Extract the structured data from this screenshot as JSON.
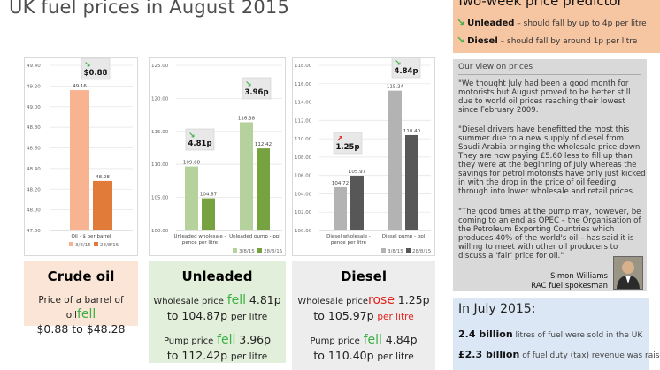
{
  "page": {
    "title": "UK fuel prices in August 2015"
  },
  "chart_data": [
    {
      "type": "bar",
      "categories": [
        "Oil - $ per barrel"
      ],
      "series": [
        {
          "name": "3/8/15",
          "values": [
            49.16
          ],
          "color": "#f8b391"
        },
        {
          "name": "28/8/15",
          "values": [
            48.28
          ],
          "color": "#e07b39"
        }
      ],
      "ylim": [
        47.8,
        49.4
      ],
      "yticks": [
        "47.80",
        "48.00",
        "48.20",
        "48.40",
        "48.60",
        "48.80",
        "49.00",
        "49.20",
        "49.40"
      ],
      "value_labels": [
        "49.16",
        "48.28"
      ],
      "badge": {
        "text": "$0.88",
        "arrow": "down"
      },
      "grid": true,
      "legend": "bottom"
    },
    {
      "type": "bar",
      "categories": [
        "Unleaded wholesale - pence per litre",
        "Unleaded pump - ppl"
      ],
      "series": [
        {
          "name": "3/8/15",
          "values": [
            109.68,
            116.38
          ],
          "color": "#b5d19c"
        },
        {
          "name": "28/8/15",
          "values": [
            104.87,
            112.42
          ],
          "color": "#77a240"
        }
      ],
      "ylim": [
        100,
        125
      ],
      "yticks": [
        "100.00",
        "105.00",
        "110.00",
        "115.00",
        "120.00",
        "125.00"
      ],
      "value_labels": [
        [
          "109.68",
          "104.87"
        ],
        [
          "116.38",
          "112.42"
        ]
      ],
      "badges": [
        {
          "text": "4.81p",
          "arrow": "down"
        },
        {
          "text": "3.96p",
          "arrow": "down"
        }
      ],
      "grid": true,
      "legend": "bottom-right"
    },
    {
      "type": "bar",
      "categories": [
        "Diesel wholesale - pence per litre",
        "Diesel pump - ppl"
      ],
      "series": [
        {
          "name": "3/8/15",
          "values": [
            104.72,
            115.24
          ],
          "color": "#b3b3b3"
        },
        {
          "name": "28/8/15",
          "values": [
            105.97,
            110.4
          ],
          "color": "#575757"
        }
      ],
      "ylim": [
        100,
        118
      ],
      "yticks": [
        "100.00",
        "102.00",
        "104.00",
        "106.00",
        "108.00",
        "110.00",
        "112.00",
        "114.00",
        "116.00",
        "118.00"
      ],
      "value_labels": [
        [
          "104.72",
          "105.97"
        ],
        [
          "115.24",
          "110.40"
        ]
      ],
      "badges": [
        {
          "text": "1.25p",
          "arrow": "up"
        },
        {
          "text": "4.84p",
          "arrow": "down"
        }
      ],
      "grid": true,
      "legend": "bottom-right"
    }
  ],
  "panels": {
    "crude": {
      "heading": "Crude oil",
      "line1_pre": "Price of a barrel of oil",
      "line1_verb": "fell",
      "line2": "$0.88 to $48.28",
      "bg": "#fbe5d6"
    },
    "unleaded": {
      "heading": "Unleaded",
      "ws_pre": "Wholesale price",
      "ws_verb": "fell",
      "ws_amount": "4.81p",
      "ws_to": "to 104.87p",
      "ws_unit": "per litre",
      "pump_pre": "Pump price",
      "pump_verb": "fell",
      "pump_amount": "3.96p",
      "pump_to": "to 112.42p",
      "pump_unit": "per litre",
      "bg": "#e2efda"
    },
    "diesel": {
      "heading": "Diesel",
      "ws_pre": "Wholesale price",
      "ws_verb": "rose",
      "ws_amount": "1.25p",
      "ws_to": "to 105.97p",
      "ws_unit": "per litre",
      "pump_pre": "Pump price",
      "pump_verb": "fell",
      "pump_amount": "4.84p",
      "pump_to": "to 110.40p",
      "pump_unit": "per litre",
      "bg": "#ededed"
    }
  },
  "predictor": {
    "heading": "Two-week price predictor",
    "unleaded_label": "Unleaded",
    "unleaded_text": "– should fall by up to 4p per litre",
    "diesel_label": "Diesel",
    "diesel_text": "– should fall by around 1p per litre"
  },
  "view": {
    "heading": "Our view on prices",
    "quote1": "\"We thought July had been a good month for motorists but August proved to be better still due to world oil prices reaching their lowest since February 2009.",
    "quote2": "\"Diesel drivers have benefitted the most this summer due to a new supply of diesel from Saudi Arabia bringing the wholesale price down. They are now paying £5.60 less to fill up than they were at the beginning of July whereas the savings for petrol motorists have only just kicked in with the drop in the price of oil feeding through into lower wholesale and retail prices.",
    "quote3": "\"The good times at the pump may, however, be coming to an end as OPEC – the Organisation of the Petroleum Exporting Countries which produces 40% of the world's oil – has said it is willing to meet with other oil producers to discuss a 'fair' price for oil.\"",
    "sig_name": "Simon Williams",
    "sig_role": "RAC fuel spokesman"
  },
  "july": {
    "heading": "In July 2015:",
    "stat1_value": "2.4 billion",
    "stat1_text": "litres of fuel were sold in the UK",
    "stat2_value": "£2.3 billion",
    "stat2_text": "of fuel duty (tax) revenue was raised"
  }
}
